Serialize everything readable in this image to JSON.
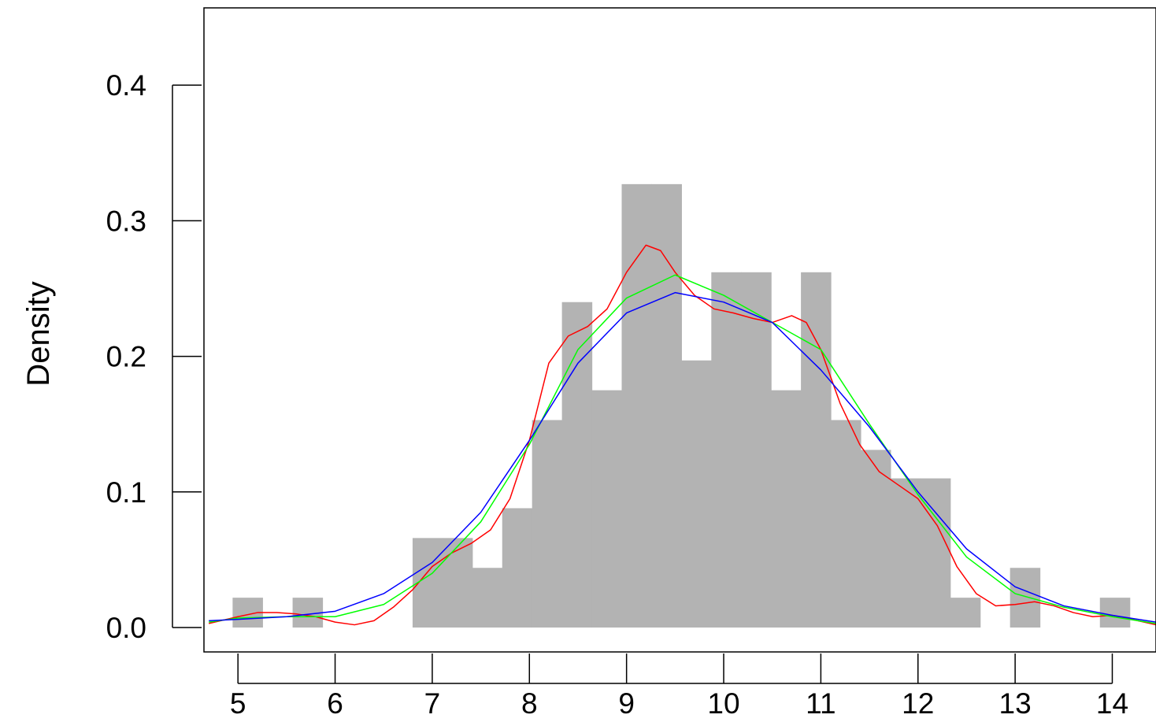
{
  "chart_data": {
    "type": "bar",
    "title": "",
    "xlabel": "",
    "ylabel": "Density",
    "xlim": [
      4.65,
      14.45
    ],
    "ylim": [
      -0.018,
      0.457
    ],
    "x_ticks": [
      5,
      6,
      7,
      8,
      9,
      10,
      11,
      12,
      13,
      14
    ],
    "y_ticks": [
      0.0,
      0.1,
      0.2,
      0.3,
      0.4
    ],
    "y_tick_labels": [
      "0.0",
      "0.1",
      "0.2",
      "0.3",
      "0.4"
    ],
    "grid": false,
    "bar_color": "#b3b3b3",
    "histogram": {
      "bin_width": 0.3075,
      "bins": [
        {
          "start": 4.945,
          "density": 0.022
        },
        {
          "start": 5.5625,
          "density": 0.022
        },
        {
          "start": 6.7975,
          "density": 0.066
        },
        {
          "start": 7.105,
          "density": 0.066
        },
        {
          "start": 7.4125,
          "density": 0.044
        },
        {
          "start": 7.72,
          "density": 0.088
        },
        {
          "start": 8.0275,
          "density": 0.153
        },
        {
          "start": 8.335,
          "density": 0.24
        },
        {
          "start": 8.6425,
          "density": 0.175
        },
        {
          "start": 8.95,
          "density": 0.327
        },
        {
          "start": 9.2575,
          "density": 0.327
        },
        {
          "start": 9.565,
          "density": 0.197
        },
        {
          "start": 9.8725,
          "density": 0.262
        },
        {
          "start": 10.18,
          "density": 0.262
        },
        {
          "start": 10.4875,
          "density": 0.175
        },
        {
          "start": 10.795,
          "density": 0.262
        },
        {
          "start": 11.1025,
          "density": 0.153
        },
        {
          "start": 11.41,
          "density": 0.131
        },
        {
          "start": 11.7175,
          "density": 0.11
        },
        {
          "start": 12.025,
          "density": 0.11
        },
        {
          "start": 12.3325,
          "density": 0.022
        },
        {
          "start": 12.9475,
          "density": 0.044
        },
        {
          "start": 13.8725,
          "density": 0.022
        }
      ]
    },
    "series": [
      {
        "color": "#ff0000",
        "x": [
          4.7,
          5.0,
          5.2,
          5.4,
          5.6,
          5.8,
          6.0,
          6.2,
          6.4,
          6.6,
          6.8,
          7.0,
          7.2,
          7.4,
          7.6,
          7.8,
          8.0,
          8.2,
          8.4,
          8.6,
          8.8,
          9.0,
          9.2,
          9.35,
          9.5,
          9.7,
          9.9,
          10.1,
          10.3,
          10.5,
          10.7,
          10.85,
          11.0,
          11.2,
          11.4,
          11.6,
          11.8,
          12.0,
          12.2,
          12.4,
          12.6,
          12.8,
          13.0,
          13.2,
          13.4,
          13.6,
          13.8,
          14.0,
          14.2,
          14.45
        ],
        "y": [
          0.003,
          0.008,
          0.011,
          0.011,
          0.01,
          0.008,
          0.004,
          0.002,
          0.005,
          0.015,
          0.028,
          0.045,
          0.055,
          0.062,
          0.072,
          0.095,
          0.138,
          0.195,
          0.215,
          0.222,
          0.235,
          0.262,
          0.282,
          0.278,
          0.262,
          0.245,
          0.235,
          0.232,
          0.228,
          0.225,
          0.23,
          0.225,
          0.205,
          0.165,
          0.135,
          0.115,
          0.105,
          0.095,
          0.075,
          0.045,
          0.025,
          0.016,
          0.017,
          0.019,
          0.016,
          0.011,
          0.008,
          0.009,
          0.006,
          0.002
        ]
      },
      {
        "color": "#00ff00",
        "x": [
          4.7,
          5.0,
          5.5,
          6.0,
          6.5,
          7.0,
          7.5,
          8.0,
          8.5,
          9.0,
          9.5,
          10.0,
          10.5,
          11.0,
          11.5,
          12.0,
          12.5,
          13.0,
          13.5,
          14.0,
          14.45
        ],
        "y": [
          0.004,
          0.007,
          0.008,
          0.008,
          0.017,
          0.04,
          0.078,
          0.135,
          0.205,
          0.243,
          0.26,
          0.245,
          0.225,
          0.205,
          0.15,
          0.098,
          0.052,
          0.025,
          0.015,
          0.008,
          0.003
        ]
      },
      {
        "color": "#0000ff",
        "x": [
          4.7,
          5.0,
          5.5,
          6.0,
          6.5,
          7.0,
          7.5,
          8.0,
          8.5,
          9.0,
          9.5,
          10.0,
          10.5,
          11.0,
          11.5,
          12.0,
          12.5,
          13.0,
          13.5,
          14.0,
          14.45
        ],
        "y": [
          0.005,
          0.006,
          0.008,
          0.012,
          0.025,
          0.048,
          0.085,
          0.138,
          0.195,
          0.232,
          0.247,
          0.24,
          0.225,
          0.19,
          0.148,
          0.1,
          0.058,
          0.03,
          0.016,
          0.009,
          0.004
        ]
      }
    ]
  }
}
